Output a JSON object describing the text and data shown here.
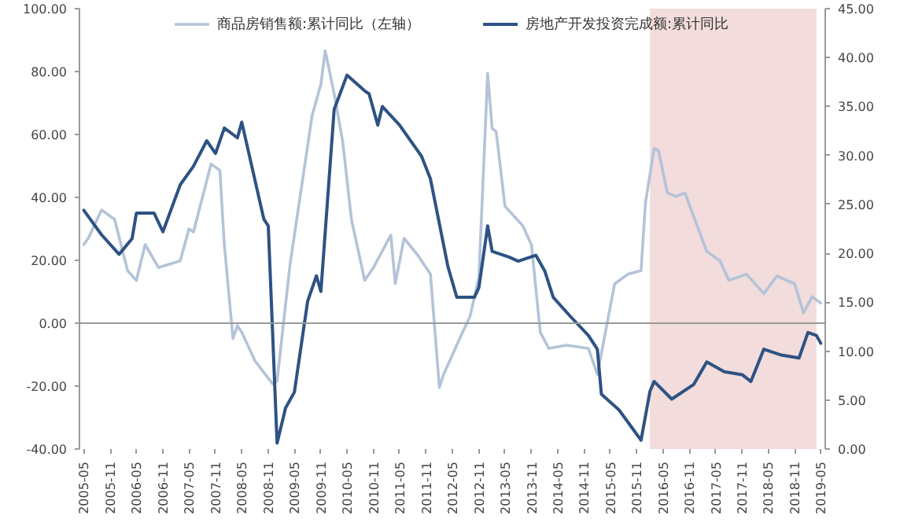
{
  "chart_data": {
    "type": "line",
    "legend": "top",
    "grid": false,
    "series": [
      {
        "name": "商品房销售额:累计同比（左轴）",
        "color": "#b4c3d8",
        "x": [
          "2005-05",
          "2005-06",
          "2005-09",
          "2005-12",
          "2006-03",
          "2006-05",
          "2006-07",
          "2006-10",
          "2007-03",
          "2007-05",
          "2007-06",
          "2007-10",
          "2007-12",
          "2008-01",
          "2008-03",
          "2008-04",
          "2008-05",
          "2008-08",
          "2008-12",
          "2009-01",
          "2009-04",
          "2009-09",
          "2009-11",
          "2009-12",
          "2010-02",
          "2010-04",
          "2010-06",
          "2010-09",
          "2010-11",
          "2011-03",
          "2011-04",
          "2011-06",
          "2011-09",
          "2011-12",
          "2012-02",
          "2012-03",
          "2012-07",
          "2012-09",
          "2012-11",
          "2013-01",
          "2013-02",
          "2013-03",
          "2013-05",
          "2013-09",
          "2013-11",
          "2014-01",
          "2014-03",
          "2014-07",
          "2014-12",
          "2015-02",
          "2015-06",
          "2015-09",
          "2015-12",
          "2016-01",
          "2016-03",
          "2016-04",
          "2016-06",
          "2016-08",
          "2016-10",
          "2017-03",
          "2017-06",
          "2017-08",
          "2017-12",
          "2018-04",
          "2018-07",
          "2018-11",
          "2019-01",
          "2019-03",
          "2019-05"
        ],
        "values": [
          25,
          27,
          36,
          33,
          16.7,
          13.6,
          25,
          17.7,
          19.8,
          30,
          29,
          50.6,
          48.6,
          25,
          -4.9,
          -0.8,
          -2.9,
          -12,
          -19.3,
          -18.3,
          18.7,
          66,
          76,
          86.6,
          73,
          57.8,
          33,
          13.6,
          17.7,
          28,
          12.6,
          27,
          21.8,
          15.6,
          -20.4,
          -16.3,
          -3.9,
          2.2,
          14.6,
          79.4,
          61.9,
          60.9,
          37.2,
          31,
          24.9,
          -2.9,
          -8,
          -7,
          -8,
          -16.3,
          12.5,
          15.6,
          16.7,
          38.3,
          55.7,
          54.7,
          41.4,
          40.3,
          41.4,
          22.8,
          19.8,
          13.6,
          15.6,
          9.4,
          15,
          12.5,
          3.3,
          8.4,
          6.4
        ]
      },
      {
        "name": "房地产开发投资完成额:累计同比",
        "color": "#2e5283",
        "axis": "y2",
        "x": [
          "2005-05",
          "2005-09",
          "2006-01",
          "2006-04",
          "2006-05",
          "2006-09",
          "2006-11",
          "2007-03",
          "2007-06",
          "2007-09",
          "2007-11",
          "2008-01",
          "2008-04",
          "2008-05",
          "2008-10",
          "2008-11",
          "2009-01",
          "2009-03",
          "2009-05",
          "2009-08",
          "2009-10",
          "2009-11",
          "2010-02",
          "2010-05",
          "2010-09",
          "2010-10",
          "2010-12",
          "2011-01",
          "2011-05",
          "2011-10",
          "2011-12",
          "2012-04",
          "2012-06",
          "2012-10",
          "2012-11",
          "2013-01",
          "2013-02",
          "2013-06",
          "2013-08",
          "2013-12",
          "2014-02",
          "2014-04",
          "2014-08",
          "2014-12",
          "2015-02",
          "2015-03",
          "2015-07",
          "2015-12",
          "2016-02",
          "2016-03",
          "2016-07",
          "2016-12",
          "2017-03",
          "2017-07",
          "2017-11",
          "2018-01",
          "2018-04",
          "2018-08",
          "2018-12",
          "2019-02",
          "2019-04",
          "2019-05"
        ],
        "values": [
          24.4,
          21.9,
          19.9,
          21.5,
          24.1,
          24.1,
          22.2,
          27.0,
          28.9,
          31.5,
          30.2,
          32.8,
          31.8,
          33.4,
          23.5,
          22.8,
          0.6,
          4.2,
          5.8,
          15.1,
          17.7,
          16.1,
          34.7,
          38.2,
          36.6,
          36.3,
          33.1,
          35.0,
          33.1,
          29.9,
          27.6,
          18.6,
          15.5,
          15.5,
          16.5,
          22.8,
          20.2,
          19.6,
          19.2,
          19.8,
          18.2,
          15.5,
          13.5,
          11.6,
          10.2,
          5.6,
          4.0,
          0.9,
          5.9,
          6.9,
          5.1,
          6.6,
          8.9,
          7.9,
          7.6,
          6.9,
          10.2,
          9.6,
          9.3,
          11.9,
          11.6,
          10.8
        ]
      }
    ],
    "xlim": [
      "2005-04",
      "2019-06"
    ],
    "xticks": [
      "2005-05",
      "2005-11",
      "2006-05",
      "2006-11",
      "2007-05",
      "2007-11",
      "2008-05",
      "2008-11",
      "2009-05",
      "2009-11",
      "2010-05",
      "2010-11",
      "2011-05",
      "2011-11",
      "2012-05",
      "2012-11",
      "2013-05",
      "2013-11",
      "2014-05",
      "2014-11",
      "2015-05",
      "2015-11",
      "2016-05",
      "2016-11",
      "2017-05",
      "2017-11",
      "2018-05",
      "2018-11",
      "2019-05"
    ],
    "ylim": [
      -40,
      100
    ],
    "yticks": [
      {
        "value": -40,
        "label": "-40.00"
      },
      {
        "value": -20,
        "label": "-20.00"
      },
      {
        "value": 0,
        "label": "0.00"
      },
      {
        "value": 20,
        "label": "20.00"
      },
      {
        "value": 40,
        "label": "40.00"
      },
      {
        "value": 60,
        "label": "60.00"
      },
      {
        "value": 80,
        "label": "80.00"
      },
      {
        "value": 100,
        "label": "100.00"
      }
    ],
    "y2lim": [
      0,
      45
    ],
    "y2ticks": [
      {
        "value": 0,
        "label": "0.00"
      },
      {
        "value": 5,
        "label": "5.00"
      },
      {
        "value": 10,
        "label": "10.00"
      },
      {
        "value": 15,
        "label": "15.00"
      },
      {
        "value": 20,
        "label": "20.00"
      },
      {
        "value": 25,
        "label": "25.00"
      },
      {
        "value": 30,
        "label": "30.00"
      },
      {
        "value": 35,
        "label": "35.00"
      },
      {
        "value": 40,
        "label": "40.00"
      },
      {
        "value": 45,
        "label": "45.00"
      }
    ],
    "ref_lines": [
      {
        "axis": "y",
        "value": 0,
        "color": "#999999"
      }
    ],
    "bands": [
      {
        "axis": "x",
        "from": "2016-02",
        "to": "2019-04",
        "color": "#f2dcdc"
      }
    ]
  }
}
